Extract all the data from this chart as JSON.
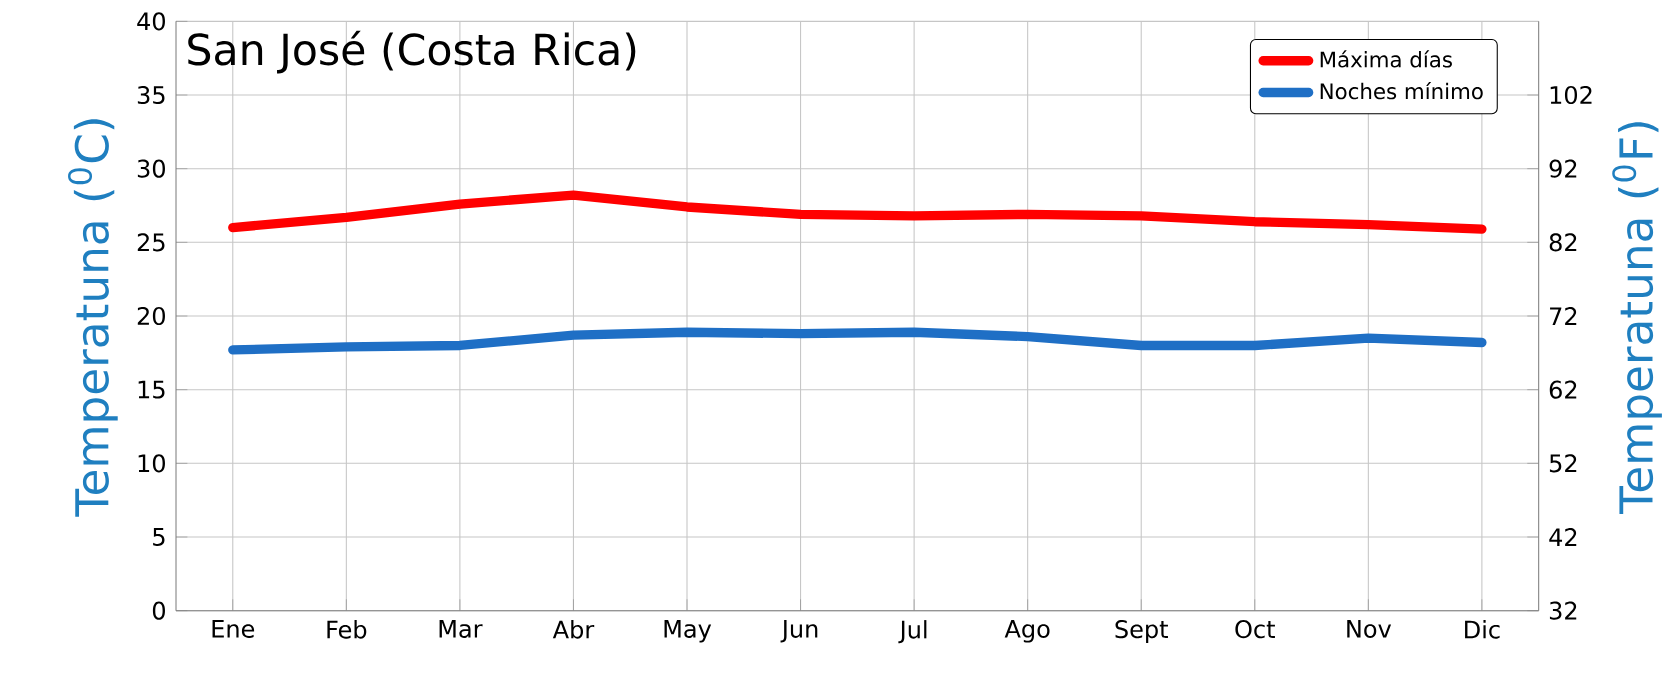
{
  "chart_data": {
    "type": "line",
    "title": "San José (Costa Rica)",
    "ylabel": "Temperatuna ($^{0}$C)",
    "y2label": "Temperatuna ($^{0}$F)",
    "categories": [
      "Ene",
      "Feb",
      "Mar",
      "Abr",
      "May",
      "Jun",
      "Jul",
      "Ago",
      "Sept",
      "Oct",
      "Nov",
      "Dic"
    ],
    "series": [
      {
        "name": "Máxima días",
        "color": "#ff0000",
        "values": [
          26.0,
          26.7,
          27.6,
          28.2,
          27.4,
          26.9,
          26.8,
          26.9,
          26.8,
          26.4,
          26.2,
          25.9
        ]
      },
      {
        "name": "Noches mínimo",
        "color": "#1f6fc5",
        "values": [
          17.7,
          17.9,
          18.0,
          18.7,
          18.9,
          18.8,
          18.9,
          18.6,
          18.0,
          18.0,
          18.5,
          18.2
        ]
      }
    ],
    "ylim": [
      0,
      40
    ],
    "yticks": [
      0,
      5,
      10,
      15,
      20,
      25,
      30,
      35,
      40
    ],
    "y2lim": [
      32,
      112
    ],
    "y2ticks": [
      32,
      42,
      52,
      62,
      72,
      82,
      92,
      102
    ],
    "grid": true,
    "legend": "top right",
    "marker": "none",
    "line_style": "solid"
  }
}
